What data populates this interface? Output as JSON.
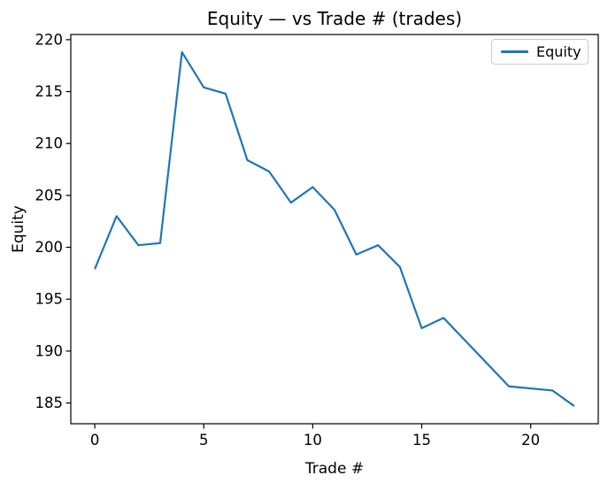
{
  "figure": {
    "background": "#ffffff",
    "axis_color": "#000000"
  },
  "chart_data": {
    "type": "line",
    "title": "Equity — vs Trade # (trades)",
    "xlabel": "Trade #",
    "ylabel": "Equity",
    "x": [
      0,
      1,
      2,
      3,
      4,
      5,
      6,
      7,
      8,
      9,
      10,
      11,
      12,
      13,
      14,
      15,
      16,
      17,
      18,
      19,
      20,
      21,
      22
    ],
    "series": [
      {
        "name": "Equity",
        "color": "#1f77b4",
        "values": [
          197.9,
          203.0,
          200.2,
          200.4,
          218.8,
          215.4,
          214.8,
          208.4,
          207.3,
          204.3,
          205.8,
          203.6,
          199.3,
          200.2,
          198.1,
          192.2,
          193.2,
          191.0,
          188.8,
          186.6,
          186.4,
          186.2,
          184.7
        ]
      }
    ],
    "xlim": [
      -1.1,
      23.1
    ],
    "ylim": [
      183.0,
      220.5
    ],
    "xticks": [
      0,
      5,
      10,
      15,
      20
    ],
    "yticks": [
      185,
      190,
      195,
      200,
      205,
      210,
      215,
      220
    ],
    "grid": false,
    "legend": {
      "position": "upper right",
      "entries": [
        {
          "label": "Equity",
          "color": "#1f77b4"
        }
      ]
    }
  }
}
